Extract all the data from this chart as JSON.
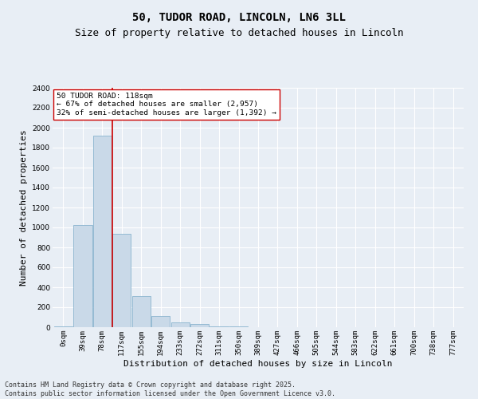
{
  "title_line1": "50, TUDOR ROAD, LINCOLN, LN6 3LL",
  "title_line2": "Size of property relative to detached houses in Lincoln",
  "xlabel": "Distribution of detached houses by size in Lincoln",
  "ylabel": "Number of detached properties",
  "bar_labels": [
    "0sqm",
    "39sqm",
    "78sqm",
    "117sqm",
    "155sqm",
    "194sqm",
    "233sqm",
    "272sqm",
    "311sqm",
    "350sqm",
    "389sqm",
    "427sqm",
    "466sqm",
    "505sqm",
    "544sqm",
    "583sqm",
    "622sqm",
    "661sqm",
    "700sqm",
    "738sqm",
    "777sqm"
  ],
  "bar_values": [
    10,
    1025,
    1920,
    935,
    315,
    110,
    45,
    30,
    10,
    5,
    2,
    0,
    0,
    0,
    0,
    0,
    0,
    0,
    0,
    0,
    0
  ],
  "bar_color": "#c9d9e8",
  "bar_edge_color": "#7aaac8",
  "ylim": [
    0,
    2400
  ],
  "yticks": [
    0,
    200,
    400,
    600,
    800,
    1000,
    1200,
    1400,
    1600,
    1800,
    2000,
    2200,
    2400
  ],
  "vline_color": "#cc0000",
  "annotation_text": "50 TUDOR ROAD: 118sqm\n← 67% of detached houses are smaller (2,957)\n32% of semi-detached houses are larger (1,392) →",
  "annotation_box_color": "#ffffff",
  "annotation_box_edge": "#cc0000",
  "bg_color": "#e8eef5",
  "plot_bg_color": "#e8eef5",
  "grid_color": "#ffffff",
  "footer_line1": "Contains HM Land Registry data © Crown copyright and database right 2025.",
  "footer_line2": "Contains public sector information licensed under the Open Government Licence v3.0.",
  "title_fontsize": 10,
  "subtitle_fontsize": 9,
  "tick_fontsize": 6.5,
  "ylabel_fontsize": 8,
  "xlabel_fontsize": 8,
  "annot_fontsize": 6.8,
  "footer_fontsize": 6
}
